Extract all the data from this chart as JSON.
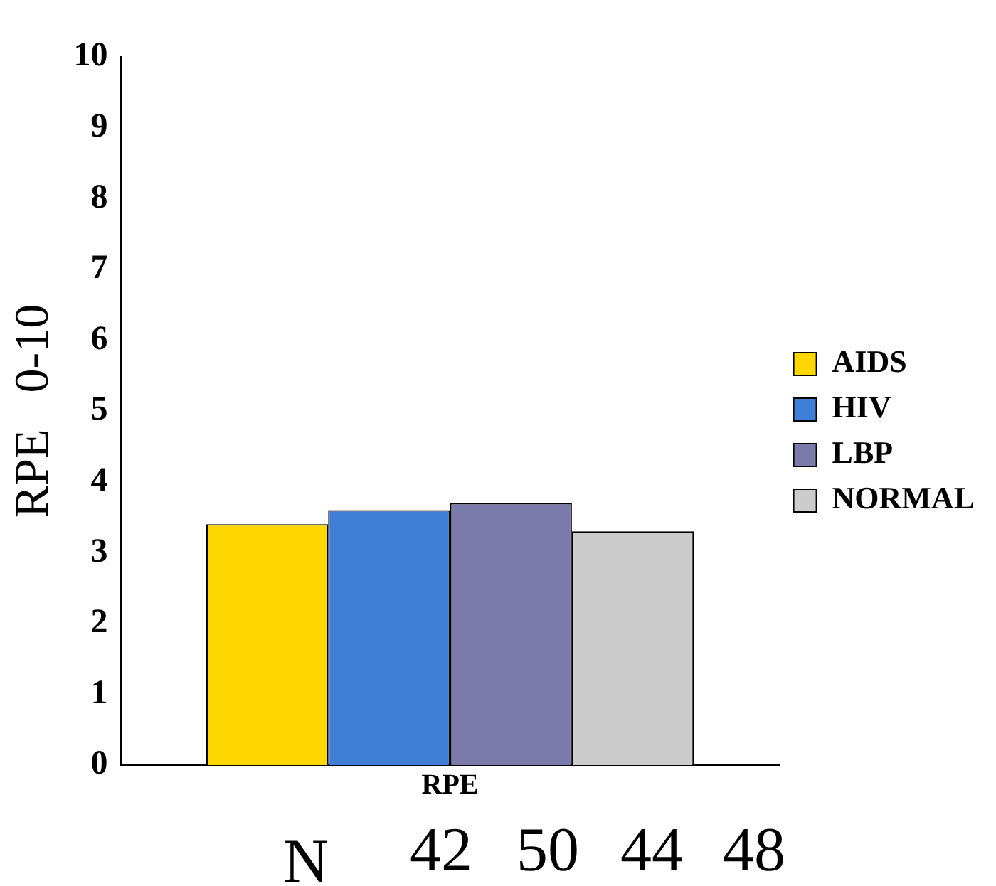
{
  "chart_data": {
    "type": "bar",
    "ylabel": "RPE   0-10",
    "categories": [
      "RPE"
    ],
    "series": [
      {
        "name": "AIDS",
        "color": "#ffd700",
        "values": [
          3.4
        ]
      },
      {
        "name": "HIV",
        "color": "#3f7fd8",
        "values": [
          3.6
        ]
      },
      {
        "name": "LBP",
        "color": "#7b7bab",
        "values": [
          3.7
        ]
      },
      {
        "name": "NORMAL",
        "color": "#cccccc",
        "values": [
          3.3
        ]
      }
    ],
    "ylim": [
      0,
      10
    ],
    "yticks": [
      0,
      1,
      2,
      3,
      4,
      5,
      6,
      7,
      8,
      9,
      10
    ],
    "grid": false,
    "legend": "right",
    "annotations": [
      "N",
      "42",
      "50",
      "44",
      "48"
    ]
  }
}
